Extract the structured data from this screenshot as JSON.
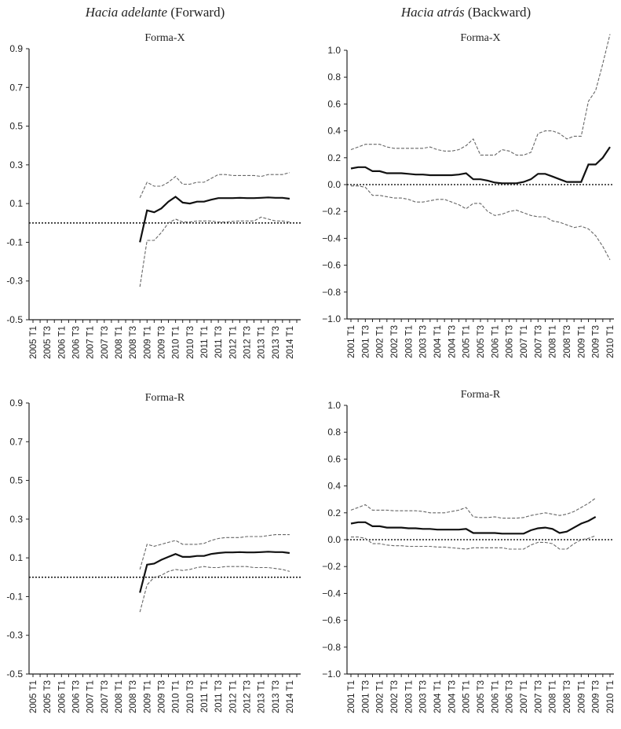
{
  "columns": [
    {
      "italic": "Hacia adelante",
      "plain": " (Forward)"
    },
    {
      "italic": "Hacia atrás",
      "plain": " (Backward)"
    }
  ],
  "chart_data": [
    {
      "type": "line",
      "title": "Forma-X",
      "column": 0,
      "ylim": [
        -0.5,
        0.9
      ],
      "yticks": [
        "0.9",
        "0.7",
        "0.5",
        "0.3",
        "0.1",
        "-0.1",
        "-0.3",
        "-0.5"
      ],
      "ytick_values": [
        0.9,
        0.7,
        0.5,
        0.3,
        0.1,
        -0.1,
        -0.3,
        -0.5
      ],
      "x_labels": [
        "2005 T1",
        "2005 T3",
        "2006 T1",
        "2006 T3",
        "2007 T1",
        "2007 T3",
        "2008 T1",
        "2008 T3",
        "2009 T1",
        "2009 T3",
        "2010 T1",
        "2010 T3",
        "2011 T1",
        "2011 T3",
        "2012 T1",
        "2012 T3",
        "2013 T1",
        "2013 T3",
        "2014 T1"
      ],
      "n_quarters": 38,
      "x_start_index": 15,
      "series": [
        {
          "role": "estimate",
          "values": [
            -0.1,
            0.065,
            0.055,
            0.075,
            0.11,
            0.135,
            0.105,
            0.1,
            0.11,
            0.11,
            0.12,
            0.128,
            0.128,
            0.128,
            0.13,
            0.128,
            0.128,
            0.13,
            0.132,
            0.13,
            0.13,
            0.125
          ]
        },
        {
          "role": "upper",
          "values": [
            0.13,
            0.21,
            0.19,
            0.19,
            0.21,
            0.24,
            0.2,
            0.2,
            0.21,
            0.21,
            0.23,
            0.25,
            0.25,
            0.245,
            0.245,
            0.245,
            0.245,
            0.24,
            0.25,
            0.25,
            0.25,
            0.26
          ]
        },
        {
          "role": "lower",
          "values": [
            -0.33,
            -0.09,
            -0.09,
            -0.05,
            0.0,
            0.02,
            0.005,
            0.005,
            0.01,
            0.01,
            0.01,
            0.005,
            0.005,
            0.008,
            0.01,
            0.01,
            0.01,
            0.03,
            0.02,
            0.01,
            0.01,
            0.005
          ]
        }
      ],
      "zero_line": 0
    },
    {
      "type": "line",
      "title": "Forma-X",
      "column": 1,
      "ylim": [
        -1.0,
        1.0
      ],
      "yticks": [
        "1.0",
        "0.8",
        "0.6",
        "0.4",
        "0.2",
        "0.0",
        "−0.2",
        "−0.4",
        "−0.6",
        "−0.8",
        "−1.0"
      ],
      "ytick_values": [
        1.0,
        0.8,
        0.6,
        0.4,
        0.2,
        0.0,
        -0.2,
        -0.4,
        -0.6,
        -0.8,
        -1.0
      ],
      "x_labels": [
        "2001 T1",
        "2001 T3",
        "2002 T1",
        "2002 T3",
        "2003 T1",
        "2003 T3",
        "2004 T1",
        "2004 T3",
        "2005 T1",
        "2005 T3",
        "2006 T1",
        "2006 T3",
        "2007 T1",
        "2007 T3",
        "2008 T1",
        "2008 T3",
        "2009 T1",
        "2009 T3",
        "2010 T1"
      ],
      "n_quarters": 37,
      "x_start_index": 0,
      "series": [
        {
          "role": "estimate",
          "values": [
            0.12,
            0.13,
            0.13,
            0.1,
            0.1,
            0.085,
            0.085,
            0.085,
            0.08,
            0.075,
            0.075,
            0.07,
            0.07,
            0.07,
            0.07,
            0.075,
            0.085,
            0.04,
            0.04,
            0.03,
            0.015,
            0.01,
            0.01,
            0.01,
            0.02,
            0.04,
            0.08,
            0.08,
            0.06,
            0.04,
            0.02,
            0.02,
            0.02,
            0.15,
            0.15,
            0.2,
            0.28
          ]
        },
        {
          "role": "upper",
          "values": [
            0.26,
            0.28,
            0.3,
            0.3,
            0.3,
            0.28,
            0.27,
            0.27,
            0.27,
            0.27,
            0.27,
            0.28,
            0.26,
            0.25,
            0.25,
            0.26,
            0.29,
            0.34,
            0.22,
            0.22,
            0.22,
            0.26,
            0.25,
            0.22,
            0.22,
            0.24,
            0.38,
            0.4,
            0.4,
            0.38,
            0.34,
            0.36,
            0.36,
            0.62,
            0.7,
            0.9,
            1.12
          ]
        },
        {
          "role": "lower",
          "values": [
            -0.01,
            -0.01,
            -0.02,
            -0.08,
            -0.08,
            -0.09,
            -0.1,
            -0.1,
            -0.11,
            -0.13,
            -0.13,
            -0.12,
            -0.11,
            -0.11,
            -0.13,
            -0.15,
            -0.18,
            -0.14,
            -0.14,
            -0.2,
            -0.23,
            -0.22,
            -0.2,
            -0.19,
            -0.21,
            -0.23,
            -0.24,
            -0.24,
            -0.27,
            -0.28,
            -0.3,
            -0.32,
            -0.31,
            -0.33,
            -0.38,
            -0.46,
            -0.56
          ]
        }
      ],
      "zero_line": 0
    },
    {
      "type": "line",
      "title": "Forma-R",
      "column": 0,
      "ylim": [
        -0.5,
        0.9
      ],
      "yticks": [
        "0.9",
        "0.7",
        "0.5",
        "0.3",
        "0.1",
        "-0.1",
        "-0.3",
        "-0.5"
      ],
      "ytick_values": [
        0.9,
        0.7,
        0.5,
        0.3,
        0.1,
        -0.1,
        -0.3,
        -0.5
      ],
      "x_labels": [
        "2005 T1",
        "2005 T3",
        "2006 T1",
        "2006 T3",
        "2007 T1",
        "2007 T3",
        "2008 T1",
        "2008 T3",
        "2009 T1",
        "2009 T3",
        "2010 T1",
        "2010 T3",
        "2011 T1",
        "2011 T3",
        "2012 T1",
        "2012 T3",
        "2013 T1",
        "2013 T3",
        "2014 T1"
      ],
      "n_quarters": 38,
      "x_start_index": 15,
      "series": [
        {
          "role": "estimate",
          "values": [
            -0.08,
            0.065,
            0.07,
            0.09,
            0.105,
            0.12,
            0.105,
            0.105,
            0.11,
            0.11,
            0.12,
            0.125,
            0.128,
            0.128,
            0.13,
            0.128,
            0.128,
            0.13,
            0.132,
            0.13,
            0.13,
            0.125
          ]
        },
        {
          "role": "upper",
          "values": [
            0.04,
            0.17,
            0.16,
            0.17,
            0.18,
            0.19,
            0.17,
            0.17,
            0.17,
            0.175,
            0.19,
            0.2,
            0.205,
            0.205,
            0.205,
            0.21,
            0.21,
            0.21,
            0.215,
            0.22,
            0.22,
            0.22
          ]
        },
        {
          "role": "lower",
          "values": [
            -0.18,
            -0.04,
            0.0,
            0.01,
            0.03,
            0.04,
            0.035,
            0.04,
            0.05,
            0.055,
            0.05,
            0.05,
            0.055,
            0.055,
            0.055,
            0.055,
            0.05,
            0.05,
            0.05,
            0.045,
            0.04,
            0.03
          ]
        }
      ],
      "zero_line": 0
    },
    {
      "type": "line",
      "title": "Forma-R",
      "column": 1,
      "ylim": [
        -1.0,
        1.0
      ],
      "yticks": [
        "1.0",
        "0.8",
        "0.6",
        "0.4",
        "0.2",
        "0.0",
        "−0.2",
        "−0.4",
        "−0.6",
        "−0.8",
        "−1.0"
      ],
      "ytick_values": [
        1.0,
        0.8,
        0.6,
        0.4,
        0.2,
        0.0,
        -0.2,
        -0.4,
        -0.6,
        -0.8,
        -1.0
      ],
      "x_labels": [
        "2001 T1",
        "2001 T3",
        "2002 T1",
        "2002 T3",
        "2003 T1",
        "2003 T3",
        "2004 T1",
        "2004 T3",
        "2005 T1",
        "2005 T3",
        "2006 T1",
        "2006 T3",
        "2007 T1",
        "2007 T3",
        "2008 T1",
        "2008 T3",
        "2009 T1",
        "2009 T3",
        "2010 T1"
      ],
      "n_quarters": 37,
      "x_start_index": 0,
      "series": [
        {
          "role": "estimate",
          "values": [
            0.12,
            0.13,
            0.13,
            0.1,
            0.1,
            0.09,
            0.09,
            0.09,
            0.085,
            0.085,
            0.08,
            0.08,
            0.075,
            0.075,
            0.075,
            0.075,
            0.08,
            0.05,
            0.05,
            0.05,
            0.05,
            0.045,
            0.045,
            0.045,
            0.045,
            0.07,
            0.085,
            0.09,
            0.08,
            0.05,
            0.06,
            0.09,
            0.12,
            0.14,
            0.17
          ]
        },
        {
          "role": "upper",
          "values": [
            0.22,
            0.24,
            0.26,
            0.22,
            0.22,
            0.22,
            0.215,
            0.215,
            0.215,
            0.215,
            0.21,
            0.2,
            0.2,
            0.2,
            0.21,
            0.22,
            0.24,
            0.17,
            0.165,
            0.165,
            0.17,
            0.16,
            0.16,
            0.16,
            0.165,
            0.18,
            0.19,
            0.2,
            0.19,
            0.18,
            0.19,
            0.21,
            0.24,
            0.27,
            0.31
          ]
        },
        {
          "role": "lower",
          "values": [
            0.02,
            0.02,
            0.01,
            -0.03,
            -0.03,
            -0.04,
            -0.045,
            -0.045,
            -0.05,
            -0.05,
            -0.05,
            -0.05,
            -0.055,
            -0.055,
            -0.06,
            -0.065,
            -0.07,
            -0.06,
            -0.06,
            -0.06,
            -0.06,
            -0.06,
            -0.07,
            -0.07,
            -0.07,
            -0.04,
            -0.02,
            -0.02,
            -0.03,
            -0.07,
            -0.07,
            -0.03,
            0.0,
            0.01,
            0.03
          ]
        }
      ],
      "zero_line": 0
    }
  ]
}
